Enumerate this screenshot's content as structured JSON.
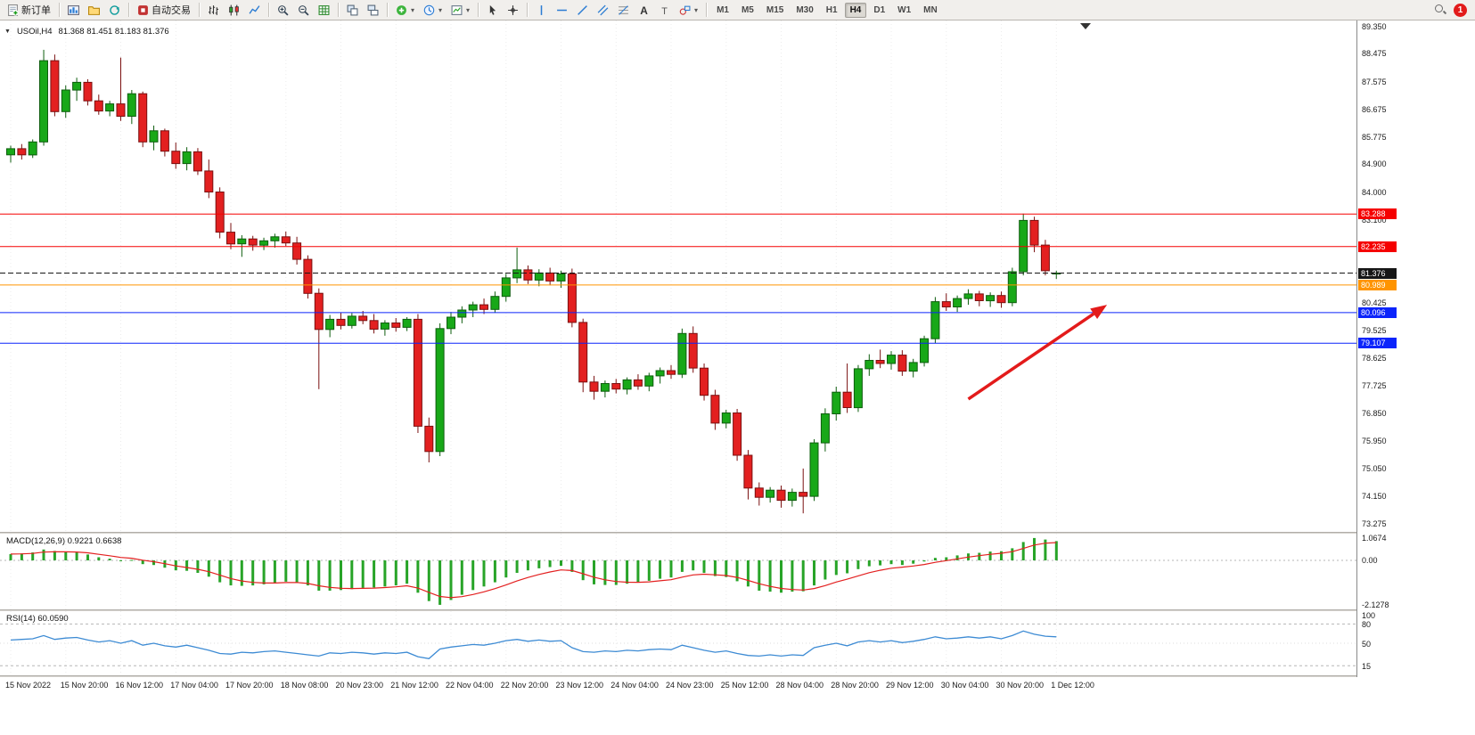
{
  "toolbar": {
    "groups": [
      {
        "items": [
          {
            "name": "new-order-button",
            "icon": "new-order-icon",
            "label": "新订单"
          }
        ]
      },
      {
        "items": [
          {
            "name": "charts-button",
            "icon": "charts-window-icon"
          },
          {
            "name": "profiles-button",
            "icon": "profiles-icon"
          },
          {
            "name": "refresh-button",
            "icon": "refresh-icon"
          }
        ]
      },
      {
        "items": [
          {
            "name": "autotrading-button",
            "icon": "autotrading-icon",
            "label": "自动交易"
          }
        ]
      },
      {
        "items": [
          {
            "name": "bar-chart-button",
            "icon": "bars-chart-icon"
          },
          {
            "name": "candlestick-chart-button",
            "icon": "candles-chart-icon"
          },
          {
            "name": "line-chart-button",
            "icon": "line-chart-icon"
          }
        ]
      },
      {
        "items": [
          {
            "name": "zoom-in-button",
            "icon": "zoom-in-icon"
          },
          {
            "name": "zoom-out-button",
            "icon": "zoom-out-icon"
          },
          {
            "name": "grid-button",
            "icon": "grid-icon"
          }
        ]
      },
      {
        "items": [
          {
            "name": "tile-windows-button",
            "icon": "tile-windows-icon"
          },
          {
            "name": "cascade-windows-button",
            "icon": "cascade-windows-icon"
          }
        ]
      },
      {
        "items": [
          {
            "name": "indicators-button",
            "icon": "add-indicator-icon",
            "dropdown": true
          },
          {
            "name": "periods-button",
            "icon": "period-icon",
            "dropdown": true
          },
          {
            "name": "templates-button",
            "icon": "template-icon",
            "dropdown": true
          }
        ]
      },
      {
        "items": [
          {
            "name": "cursor-button",
            "icon": "cursor-icon"
          },
          {
            "name": "crosshair-button",
            "icon": "crosshair-icon"
          }
        ]
      },
      {
        "items": [
          {
            "name": "vertical-line-button",
            "icon": "vline-icon"
          },
          {
            "name": "horizontal-line-button",
            "icon": "hline-icon"
          },
          {
            "name": "trendline-button",
            "icon": "trendline-icon"
          },
          {
            "name": "channel-button",
            "icon": "channel-icon"
          },
          {
            "name": "fibonacci-button",
            "icon": "fibonacci-icon"
          },
          {
            "name": "text-button",
            "icon": "text-icon"
          },
          {
            "name": "label-button",
            "icon": "label-icon"
          },
          {
            "name": "shapes-button",
            "icon": "shapes-icon",
            "dropdown": true
          }
        ]
      }
    ],
    "timeframes": [
      "M1",
      "M5",
      "M15",
      "M30",
      "H1",
      "H4",
      "D1",
      "W1",
      "MN"
    ],
    "active_timeframe": "H4",
    "notification_count": "1"
  },
  "chart": {
    "symbol_title": "USOil,H4",
    "ohlc_title": "81.368 81.451 81.183 81.376"
  },
  "chart_data": [
    {
      "type": "candlestick",
      "title": "USOil,H4",
      "current_ohlc": {
        "open": 81.368,
        "high": 81.451,
        "low": 81.183,
        "close": 81.376
      },
      "ylim": [
        73.0,
        89.55
      ],
      "up_color": "#18a818",
      "down_color": "#e32020",
      "price_ticks": [
        89.35,
        88.475,
        87.575,
        86.675,
        85.775,
        84.9,
        84.0,
        83.1,
        80.425,
        79.525,
        78.625,
        77.725,
        76.85,
        75.95,
        75.05,
        74.15,
        73.275
      ],
      "price_line_badges": [
        {
          "value": "83.288",
          "price": 83.288,
          "color": "#f50000",
          "kind": "resistance-line",
          "dashed": false
        },
        {
          "value": "82.235",
          "price": 82.235,
          "color": "#f50000",
          "kind": "resistance-line",
          "dashed": false
        },
        {
          "value": "81.376",
          "price": 81.376,
          "color": "#161616",
          "kind": "bid-price-line",
          "dashed": true
        },
        {
          "value": "80.989",
          "price": 80.989,
          "color": "#ff9400",
          "kind": "support-line",
          "dashed": false
        },
        {
          "value": "80.096",
          "price": 80.096,
          "color": "#0b24fb",
          "kind": "support-line",
          "dashed": false
        },
        {
          "value": "79.107",
          "price": 79.107,
          "color": "#0b24fb",
          "kind": "support-line",
          "dashed": false
        }
      ],
      "time_labels": [
        "15 Nov 2022",
        "15 Nov 20:00",
        "16 Nov 12:00",
        "17 Nov 04:00",
        "17 Nov 20:00",
        "18 Nov 08:00",
        "20 Nov 23:00",
        "21 Nov 12:00",
        "22 Nov 04:00",
        "22 Nov 20:00",
        "23 Nov 12:00",
        "24 Nov 04:00",
        "24 Nov 23:00",
        "25 Nov 12:00",
        "28 Nov 04:00",
        "28 Nov 20:00",
        "29 Nov 12:00",
        "30 Nov 04:00",
        "30 Nov 20:00",
        "1 Dec 12:00"
      ],
      "label_every_n_candles": 5,
      "candles_ohlc": [
        [
          85.2,
          85.5,
          84.95,
          85.4
        ],
        [
          85.4,
          85.55,
          85.05,
          85.2
        ],
        [
          85.2,
          85.7,
          85.1,
          85.62
        ],
        [
          85.62,
          88.6,
          85.5,
          88.25
        ],
        [
          88.25,
          88.45,
          86.45,
          86.6
        ],
        [
          86.6,
          87.45,
          86.4,
          87.3
        ],
        [
          87.3,
          87.7,
          86.95,
          87.55
        ],
        [
          87.55,
          87.65,
          86.8,
          86.95
        ],
        [
          86.95,
          87.15,
          86.5,
          86.62
        ],
        [
          86.62,
          86.95,
          86.45,
          86.85
        ],
        [
          86.85,
          88.35,
          86.3,
          86.45
        ],
        [
          86.45,
          87.3,
          86.2,
          87.18
        ],
        [
          87.18,
          87.25,
          85.45,
          85.62
        ],
        [
          85.62,
          86.15,
          85.35,
          85.98
        ],
        [
          85.98,
          86.05,
          85.15,
          85.32
        ],
        [
          85.32,
          85.6,
          84.75,
          84.92
        ],
        [
          84.92,
          85.45,
          84.7,
          85.3
        ],
        [
          85.3,
          85.42,
          84.55,
          84.68
        ],
        [
          84.68,
          85.05,
          83.8,
          84.0
        ],
        [
          84.0,
          84.15,
          82.5,
          82.7
        ],
        [
          82.7,
          83.0,
          82.15,
          82.32
        ],
        [
          82.32,
          82.6,
          81.9,
          82.48
        ],
        [
          82.48,
          82.58,
          82.1,
          82.28
        ],
        [
          82.28,
          82.52,
          82.12,
          82.42
        ],
        [
          82.42,
          82.65,
          82.2,
          82.55
        ],
        [
          82.55,
          82.72,
          82.25,
          82.35
        ],
        [
          82.35,
          82.55,
          81.65,
          81.82
        ],
        [
          81.82,
          81.95,
          80.55,
          80.72
        ],
        [
          80.72,
          80.88,
          77.62,
          79.55
        ],
        [
          79.55,
          80.02,
          79.3,
          79.88
        ],
        [
          79.88,
          80.1,
          79.55,
          79.68
        ],
        [
          79.68,
          80.08,
          79.58,
          79.98
        ],
        [
          79.98,
          80.15,
          79.72,
          79.84
        ],
        [
          79.84,
          80.05,
          79.42,
          79.56
        ],
        [
          79.56,
          79.85,
          79.35,
          79.76
        ],
        [
          79.76,
          79.92,
          79.48,
          79.62
        ],
        [
          79.62,
          79.95,
          79.5,
          79.88
        ],
        [
          79.88,
          80.05,
          76.2,
          76.42
        ],
        [
          76.42,
          76.7,
          75.25,
          75.6
        ],
        [
          75.6,
          79.75,
          75.45,
          79.58
        ],
        [
          79.58,
          80.12,
          79.4,
          79.95
        ],
        [
          79.95,
          80.3,
          79.75,
          80.18
        ],
        [
          80.18,
          80.45,
          79.95,
          80.35
        ],
        [
          80.35,
          80.55,
          80.05,
          80.2
        ],
        [
          80.2,
          80.78,
          80.1,
          80.62
        ],
        [
          80.62,
          81.35,
          80.45,
          81.22
        ],
        [
          81.22,
          82.2,
          81.05,
          81.48
        ],
        [
          81.48,
          81.62,
          81.02,
          81.15
        ],
        [
          81.15,
          81.5,
          80.95,
          81.38
        ],
        [
          81.38,
          81.55,
          80.98,
          81.12
        ],
        [
          81.12,
          81.45,
          80.9,
          81.35
        ],
        [
          81.35,
          81.52,
          79.62,
          79.78
        ],
        [
          79.78,
          79.9,
          77.52,
          77.85
        ],
        [
          77.85,
          78.05,
          77.28,
          77.55
        ],
        [
          77.55,
          77.9,
          77.35,
          77.8
        ],
        [
          77.8,
          77.95,
          77.48,
          77.62
        ],
        [
          77.62,
          78.0,
          77.45,
          77.92
        ],
        [
          77.92,
          78.1,
          77.6,
          77.72
        ],
        [
          77.72,
          78.15,
          77.55,
          78.05
        ],
        [
          78.05,
          78.32,
          77.8,
          78.22
        ],
        [
          78.22,
          78.4,
          77.95,
          78.1
        ],
        [
          78.1,
          79.58,
          77.98,
          79.42
        ],
        [
          79.42,
          79.65,
          78.15,
          78.3
        ],
        [
          78.3,
          78.45,
          77.25,
          77.42
        ],
        [
          77.42,
          77.6,
          76.3,
          76.52
        ],
        [
          76.52,
          76.95,
          76.35,
          76.85
        ],
        [
          76.85,
          76.98,
          75.3,
          75.48
        ],
        [
          75.48,
          75.65,
          74.05,
          74.42
        ],
        [
          74.42,
          74.6,
          73.85,
          74.12
        ],
        [
          74.12,
          74.45,
          73.95,
          74.35
        ],
        [
          74.35,
          74.5,
          73.78,
          74.02
        ],
        [
          74.02,
          74.4,
          73.82,
          74.28
        ],
        [
          74.28,
          75.05,
          73.6,
          74.15
        ],
        [
          74.15,
          76.0,
          74.0,
          75.88
        ],
        [
          75.88,
          77.0,
          75.6,
          76.82
        ],
        [
          76.82,
          77.7,
          76.6,
          77.52
        ],
        [
          77.52,
          78.45,
          76.85,
          77.02
        ],
        [
          77.02,
          78.4,
          76.88,
          78.28
        ],
        [
          78.28,
          78.75,
          78.05,
          78.55
        ],
        [
          78.55,
          78.9,
          78.3,
          78.45
        ],
        [
          78.45,
          78.85,
          78.25,
          78.72
        ],
        [
          78.72,
          78.88,
          78.05,
          78.2
        ],
        [
          78.2,
          78.6,
          78.0,
          78.48
        ],
        [
          78.48,
          79.35,
          78.35,
          79.25
        ],
        [
          79.25,
          80.6,
          79.1,
          80.45
        ],
        [
          80.45,
          80.72,
          80.15,
          80.28
        ],
        [
          80.28,
          80.65,
          80.12,
          80.55
        ],
        [
          80.55,
          80.85,
          80.35,
          80.7
        ],
        [
          80.7,
          80.8,
          80.3,
          80.48
        ],
        [
          80.48,
          80.75,
          80.28,
          80.65
        ],
        [
          80.65,
          80.78,
          80.25,
          80.42
        ],
        [
          80.42,
          81.55,
          80.3,
          81.42
        ],
        [
          81.42,
          83.3,
          81.3,
          83.08
        ],
        [
          83.08,
          83.2,
          82.05,
          82.28
        ],
        [
          82.28,
          82.45,
          81.3,
          81.45
        ],
        [
          81.368,
          81.451,
          81.183,
          81.376
        ]
      ],
      "annotation_arrow": {
        "from_candle": 87,
        "from_price": 77.3,
        "to_candle": 99.6,
        "to_price": 80.35,
        "color": "#e31b1b"
      }
    },
    {
      "type": "bar",
      "name": "MACD",
      "label": "MACD(12,26,9) 0.9221 0.6638",
      "main_current": 0.9221,
      "signal_current": 0.6638,
      "ylim": [
        -2.35,
        1.28
      ],
      "axis_ticks": [
        {
          "label": "1.0674",
          "value": 1.0674
        },
        {
          "label": "0.00",
          "value": 0
        },
        {
          "label": "-2.1278",
          "value": -2.1278
        }
      ],
      "histogram_color": "#28a428",
      "signal_color": "#e32020",
      "values": [
        0.3,
        0.33,
        0.38,
        0.52,
        0.45,
        0.4,
        0.38,
        0.28,
        0.15,
        0.08,
        -0.02,
        0.02,
        -0.18,
        -0.22,
        -0.35,
        -0.48,
        -0.5,
        -0.6,
        -0.78,
        -1.05,
        -1.2,
        -1.22,
        -1.2,
        -1.15,
        -1.08,
        -1.02,
        -1.05,
        -1.2,
        -1.45,
        -1.45,
        -1.42,
        -1.38,
        -1.32,
        -1.3,
        -1.25,
        -1.2,
        -1.12,
        -1.55,
        -1.95,
        -2.13,
        -1.9,
        -1.65,
        -1.42,
        -1.25,
        -1.05,
        -0.82,
        -0.6,
        -0.48,
        -0.38,
        -0.32,
        -0.26,
        -0.55,
        -0.95,
        -1.15,
        -1.18,
        -1.18,
        -1.12,
        -1.06,
        -0.98,
        -0.88,
        -0.82,
        -0.55,
        -0.48,
        -0.6,
        -0.75,
        -0.8,
        -1.0,
        -1.25,
        -1.45,
        -1.5,
        -1.55,
        -1.5,
        -1.48,
        -1.2,
        -0.92,
        -0.7,
        -0.62,
        -0.42,
        -0.28,
        -0.24,
        -0.18,
        -0.22,
        -0.16,
        -0.05,
        0.12,
        0.15,
        0.24,
        0.33,
        0.36,
        0.42,
        0.44,
        0.58,
        0.88,
        1.07,
        1.0,
        0.92
      ]
    },
    {
      "type": "line",
      "name": "RSI",
      "label": "RSI(14) 60.0590",
      "current": 60.059,
      "ylim": [
        0,
        100
      ],
      "axis_ticks": [
        {
          "label": "100",
          "value": 100
        },
        {
          "label": "80",
          "value": 80
        },
        {
          "label": "50",
          "value": 50
        },
        {
          "label": "15",
          "value": 15
        }
      ],
      "levels": [
        80,
        15
      ],
      "line_color": "#3d8bd4",
      "values": [
        55,
        56,
        57,
        62,
        56,
        58,
        59,
        55,
        52,
        54,
        50,
        54,
        47,
        50,
        46,
        44,
        47,
        43,
        39,
        34,
        33,
        36,
        35,
        37,
        38,
        36,
        34,
        32,
        30,
        35,
        34,
        36,
        35,
        33,
        35,
        34,
        36,
        29,
        26,
        41,
        44,
        46,
        48,
        47,
        50,
        54,
        56,
        53,
        55,
        53,
        54,
        43,
        37,
        36,
        38,
        37,
        39,
        38,
        40,
        41,
        40,
        47,
        43,
        39,
        36,
        38,
        34,
        31,
        30,
        32,
        30,
        32,
        31,
        43,
        47,
        50,
        46,
        52,
        54,
        52,
        54,
        51,
        53,
        56,
        60,
        57,
        58,
        60,
        58,
        60,
        57,
        62,
        69,
        64,
        61,
        60.06
      ]
    }
  ]
}
